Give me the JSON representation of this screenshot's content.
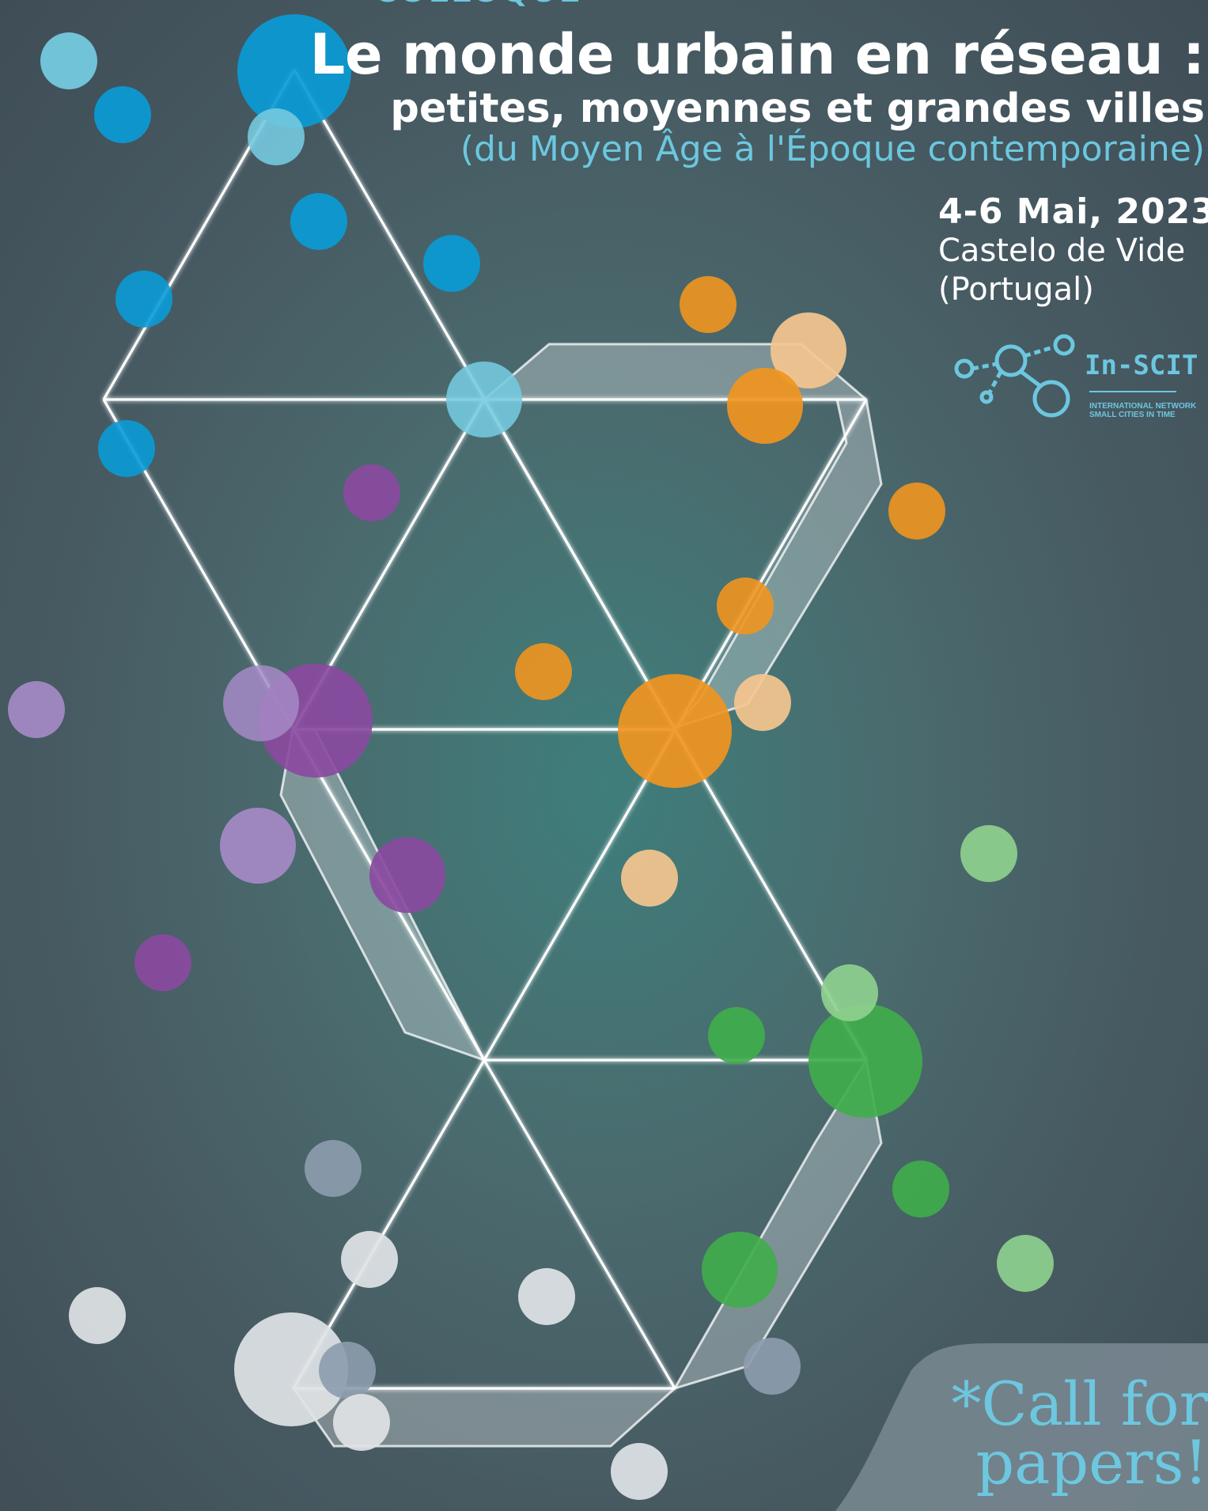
{
  "header": {
    "kicker": "COLLOQUE",
    "title": "Le monde urbain en réseau :",
    "subtitle": "petites, moyennes et grandes villes",
    "period": "(du Moyen Âge à l'Époque contemporaine)"
  },
  "event": {
    "dates": "4-6 Mai, 2023",
    "place": "Castelo de Vide",
    "country": "(Portugal)"
  },
  "logo": {
    "name": "In-SCIT",
    "sub_line1": "INTERNATIONAL NETWORK",
    "sub_line2": "SMALL CITIES IN TIME"
  },
  "call": {
    "line1": "*Call for",
    "line2": "papers!"
  },
  "colors": {
    "blue": "#0a9bd6",
    "light_blue": "#74c9df",
    "orange": "#f0951f",
    "light_orange": "#f5c68f",
    "purple": "#8a4aa0",
    "lavender": "#a58ac6",
    "green": "#40ad4c",
    "light_green": "#8ed08e",
    "slate": "#8c9cae",
    "white_dot": "#e0e3e6",
    "accent_text": "#6cc7df"
  }
}
